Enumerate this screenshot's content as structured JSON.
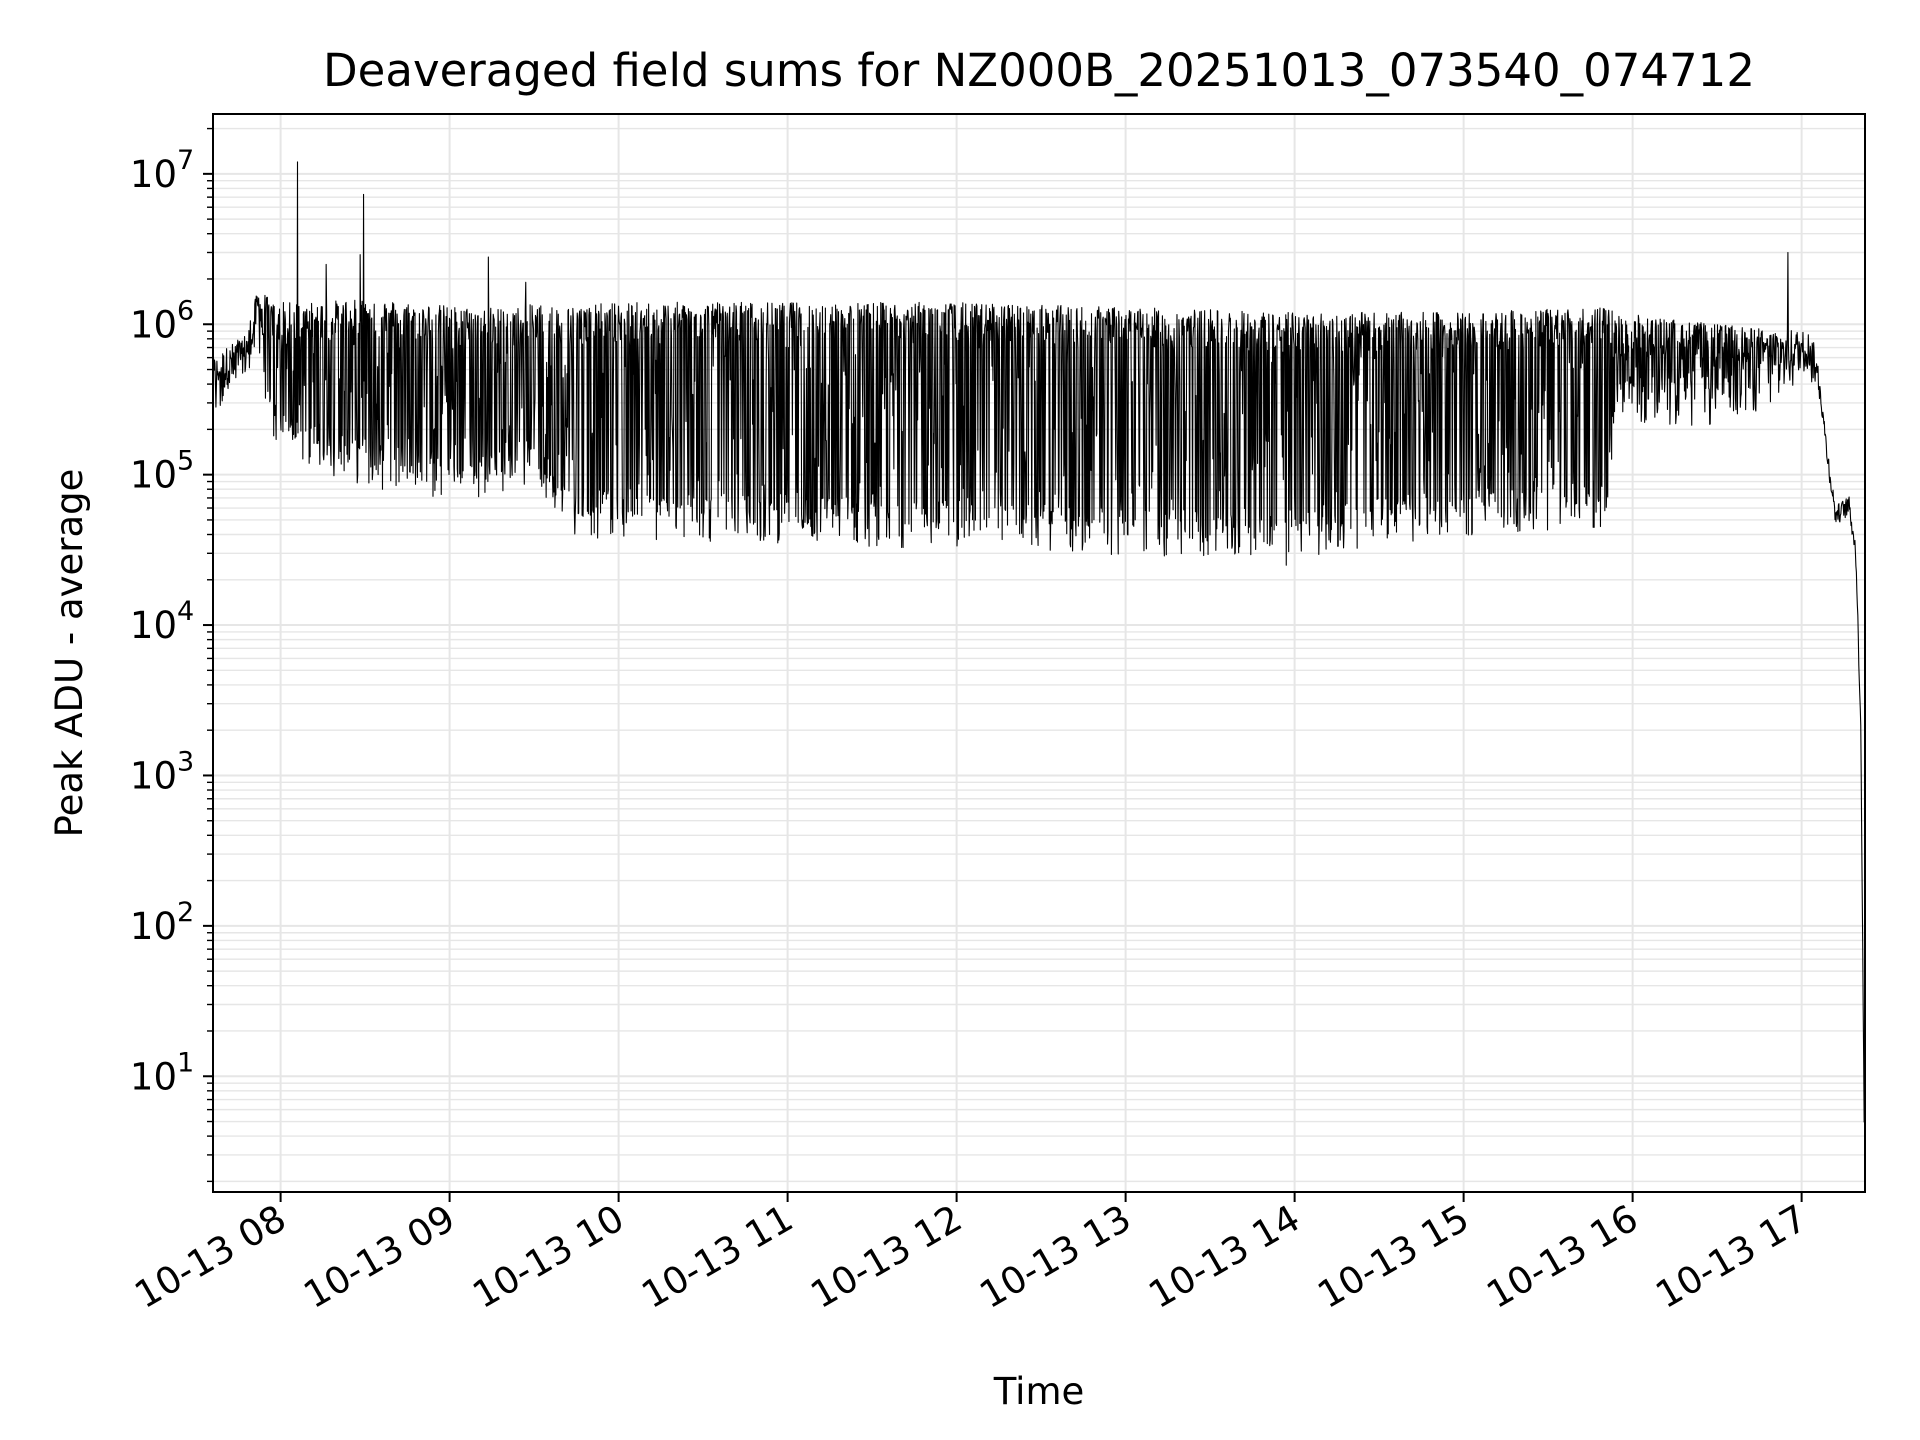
{
  "chart_data": {
    "type": "line",
    "title": "Deaveraged field sums for NZ000B_20251013_073540_074712",
    "xlabel": "Time",
    "ylabel": "Peak ADU - average",
    "yscale": "log",
    "ylim": [
      1.7,
      25000000
    ],
    "xlim_hours": [
      7.6,
      17.375
    ],
    "grid": true,
    "legend": "none",
    "line_color": "#000000",
    "grid_color": "#e6e6e6",
    "x_ticks": [
      {
        "hour": 8,
        "label": "10-13 08"
      },
      {
        "hour": 9,
        "label": "10-13 09"
      },
      {
        "hour": 10,
        "label": "10-13 10"
      },
      {
        "hour": 11,
        "label": "10-13 11"
      },
      {
        "hour": 12,
        "label": "10-13 12"
      },
      {
        "hour": 13,
        "label": "10-13 13"
      },
      {
        "hour": 14,
        "label": "10-13 14"
      },
      {
        "hour": 15,
        "label": "10-13 15"
      },
      {
        "hour": 16,
        "label": "10-13 16"
      },
      {
        "hour": 17,
        "label": "10-13 17"
      }
    ],
    "y_ticks": [
      {
        "value": 10,
        "base": "10",
        "exp": "1"
      },
      {
        "value": 100,
        "base": "10",
        "exp": "2"
      },
      {
        "value": 1000,
        "base": "10",
        "exp": "3"
      },
      {
        "value": 10000,
        "base": "10",
        "exp": "4"
      },
      {
        "value": 100000,
        "base": "10",
        "exp": "5"
      },
      {
        "value": 1000000,
        "base": "10",
        "exp": "6"
      },
      {
        "value": 10000000,
        "base": "10",
        "exp": "7"
      }
    ],
    "series": [
      {
        "name": "Peak ADU - average",
        "envelope": [
          {
            "hour": 7.6,
            "low": 320000,
            "high": 600000
          },
          {
            "hour": 7.8,
            "low": 450000,
            "high": 900000
          },
          {
            "hour": 7.87,
            "low": 1000000,
            "high": 1800000
          },
          {
            "hour": 7.95,
            "low": 200000,
            "high": 1400000
          },
          {
            "hour": 8.2,
            "low": 150000,
            "high": 1400000
          },
          {
            "hour": 8.5,
            "low": 120000,
            "high": 1500000
          },
          {
            "hour": 8.8,
            "low": 100000,
            "high": 1400000
          },
          {
            "hour": 9.1,
            "low": 90000,
            "high": 1300000
          },
          {
            "hour": 9.4,
            "low": 120000,
            "high": 1300000
          },
          {
            "hour": 9.55,
            "low": 110000,
            "high": 1400000
          },
          {
            "hour": 9.65,
            "low": 60000,
            "high": 1300000
          },
          {
            "hour": 10.0,
            "low": 50000,
            "high": 1400000
          },
          {
            "hour": 11.0,
            "low": 50000,
            "high": 1400000
          },
          {
            "hour": 12.0,
            "low": 45000,
            "high": 1400000
          },
          {
            "hour": 13.0,
            "low": 40000,
            "high": 1300000
          },
          {
            "hour": 14.0,
            "low": 40000,
            "high": 1200000
          },
          {
            "hour": 15.0,
            "low": 55000,
            "high": 1200000
          },
          {
            "hour": 15.85,
            "low": 60000,
            "high": 1300000
          },
          {
            "hour": 15.9,
            "low": 300000,
            "high": 1200000
          },
          {
            "hour": 16.5,
            "low": 300000,
            "high": 1000000
          },
          {
            "hour": 17.05,
            "low": 500000,
            "high": 900000
          },
          {
            "hour": 17.1,
            "low": 350000,
            "high": 600000
          },
          {
            "hour": 17.15,
            "low": 100000,
            "high": 200000
          },
          {
            "hour": 17.2,
            "low": 45000,
            "high": 65000
          },
          {
            "hour": 17.28,
            "low": 55000,
            "high": 72000
          },
          {
            "hour": 17.32,
            "low": 20000,
            "high": 50000
          },
          {
            "hour": 17.35,
            "low": 1000,
            "high": 5000
          },
          {
            "hour": 17.37,
            "low": 3.8,
            "high": 8
          }
        ],
        "spikes": [
          {
            "hour": 8.1,
            "value": 12000000
          },
          {
            "hour": 8.49,
            "value": 7300000
          },
          {
            "hour": 8.47,
            "value": 2900000
          },
          {
            "hour": 9.23,
            "value": 2800000
          },
          {
            "hour": 9.45,
            "value": 1900000
          },
          {
            "hour": 8.27,
            "value": 2500000
          },
          {
            "hour": 16.92,
            "value": 3000000
          },
          {
            "hour": 13.95,
            "value": 25000
          }
        ]
      }
    ]
  }
}
